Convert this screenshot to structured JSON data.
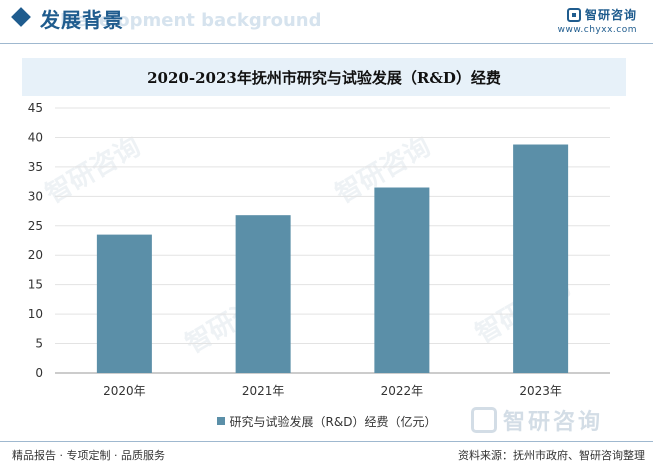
{
  "header": {
    "title": "发展背景",
    "subtitle_bg": "Development background",
    "logo_name": "智研咨询",
    "logo_url": "www.chyxx.com"
  },
  "chart_data": {
    "type": "bar",
    "title": "2020-2023年抚州市研究与试验发展（R&D）经费",
    "categories": [
      "2020年",
      "2021年",
      "2022年",
      "2023年"
    ],
    "series": [
      {
        "name": "研究与试验发展（R&D）经费（亿元）",
        "values": [
          23.5,
          26.8,
          31.5,
          38.8
        ]
      }
    ],
    "ylim": [
      0,
      45
    ],
    "yticks": [
      0,
      5,
      10,
      15,
      20,
      25,
      30,
      35,
      40,
      45
    ],
    "grid": true,
    "legend": "bottom",
    "color": "#5b8fa8"
  },
  "watermark": "智研咨询",
  "footer": {
    "left": "精品报告 · 专项定制 · 品质服务",
    "right": "资料来源：抚州市政府、智研咨询整理"
  }
}
